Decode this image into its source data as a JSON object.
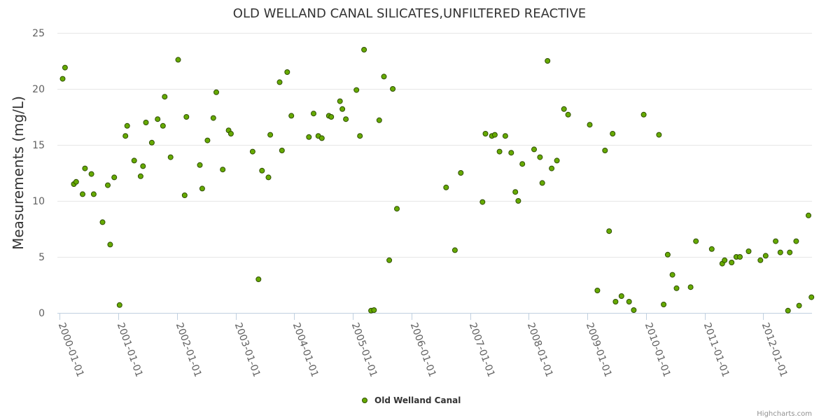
{
  "chart_data": {
    "type": "scatter",
    "title": "OLD WELLAND CANAL SILICATES,UNFILTERED REACTIVE",
    "xlabel": "",
    "ylabel": "Measurements (mg/L)",
    "ylim": [
      0,
      25
    ],
    "yticks": [
      0,
      5,
      10,
      15,
      20,
      25
    ],
    "xlim": [
      1999.96,
      2012.83
    ],
    "xticks": [
      "2000-01-01",
      "2001-01-01",
      "2002-01-01",
      "2003-01-01",
      "2004-01-01",
      "2005-01-01",
      "2006-01-01",
      "2007-01-01",
      "2008-01-01",
      "2009-01-01",
      "2010-01-01",
      "2011-01-01",
      "2012-01-01"
    ],
    "legend": "bottom-center",
    "series": [
      {
        "name": "Old Welland Canal",
        "color": "#66aa00",
        "border": "#2f4f00",
        "points": [
          [
            2000.05,
            20.9
          ],
          [
            2000.09,
            21.9
          ],
          [
            2000.24,
            11.5
          ],
          [
            2000.28,
            11.7
          ],
          [
            2000.39,
            10.6
          ],
          [
            2000.43,
            12.9
          ],
          [
            2000.54,
            12.4
          ],
          [
            2000.58,
            10.6
          ],
          [
            2000.73,
            8.1
          ],
          [
            2000.82,
            11.4
          ],
          [
            2000.86,
            6.1
          ],
          [
            2000.93,
            12.1
          ],
          [
            2001.02,
            0.7
          ],
          [
            2001.12,
            15.8
          ],
          [
            2001.15,
            16.7
          ],
          [
            2001.27,
            13.6
          ],
          [
            2001.38,
            12.2
          ],
          [
            2001.42,
            13.1
          ],
          [
            2001.47,
            17.0
          ],
          [
            2001.57,
            15.2
          ],
          [
            2001.67,
            17.3
          ],
          [
            2001.76,
            16.7
          ],
          [
            2001.79,
            19.3
          ],
          [
            2001.89,
            13.9
          ],
          [
            2002.02,
            22.6
          ],
          [
            2002.13,
            10.5
          ],
          [
            2002.16,
            17.5
          ],
          [
            2002.39,
            13.2
          ],
          [
            2002.43,
            11.1
          ],
          [
            2002.52,
            15.4
          ],
          [
            2002.62,
            17.4
          ],
          [
            2002.67,
            19.7
          ],
          [
            2002.78,
            12.8
          ],
          [
            2002.88,
            16.3
          ],
          [
            2002.92,
            16.0
          ],
          [
            2003.29,
            14.4
          ],
          [
            2003.39,
            3.0
          ],
          [
            2003.45,
            12.7
          ],
          [
            2003.56,
            12.1
          ],
          [
            2003.59,
            15.9
          ],
          [
            2003.75,
            20.6
          ],
          [
            2003.79,
            14.5
          ],
          [
            2003.88,
            21.5
          ],
          [
            2003.95,
            17.6
          ],
          [
            2004.25,
            15.7
          ],
          [
            2004.33,
            17.8
          ],
          [
            2004.41,
            15.8
          ],
          [
            2004.47,
            15.6
          ],
          [
            2004.59,
            17.6
          ],
          [
            2004.63,
            17.5
          ],
          [
            2004.78,
            18.9
          ],
          [
            2004.82,
            18.2
          ],
          [
            2004.88,
            17.3
          ],
          [
            2005.06,
            19.9
          ],
          [
            2005.12,
            15.8
          ],
          [
            2005.19,
            23.5
          ],
          [
            2005.31,
            0.2
          ],
          [
            2005.36,
            0.25
          ],
          [
            2005.45,
            17.2
          ],
          [
            2005.53,
            21.1
          ],
          [
            2005.62,
            4.7
          ],
          [
            2005.68,
            20.0
          ],
          [
            2005.75,
            9.3
          ],
          [
            2006.59,
            11.2
          ],
          [
            2006.74,
            5.6
          ],
          [
            2006.84,
            12.5
          ],
          [
            2007.21,
            9.9
          ],
          [
            2007.26,
            16.0
          ],
          [
            2007.37,
            15.8
          ],
          [
            2007.42,
            15.9
          ],
          [
            2007.5,
            14.4
          ],
          [
            2007.6,
            15.8
          ],
          [
            2007.7,
            14.3
          ],
          [
            2007.77,
            10.8
          ],
          [
            2007.82,
            10.0
          ],
          [
            2007.89,
            13.3
          ],
          [
            2008.09,
            14.6
          ],
          [
            2008.19,
            13.9
          ],
          [
            2008.23,
            11.6
          ],
          [
            2008.32,
            22.5
          ],
          [
            2008.39,
            12.9
          ],
          [
            2008.48,
            13.6
          ],
          [
            2008.6,
            18.2
          ],
          [
            2008.67,
            17.7
          ],
          [
            2009.04,
            16.8
          ],
          [
            2009.17,
            2.0
          ],
          [
            2009.3,
            14.5
          ],
          [
            2009.37,
            7.3
          ],
          [
            2009.43,
            16.0
          ],
          [
            2009.48,
            1.0
          ],
          [
            2009.58,
            1.5
          ],
          [
            2009.71,
            1.0
          ],
          [
            2009.79,
            0.25
          ],
          [
            2009.96,
            17.7
          ],
          [
            2010.22,
            15.9
          ],
          [
            2010.3,
            0.75
          ],
          [
            2010.37,
            5.2
          ],
          [
            2010.45,
            3.4
          ],
          [
            2010.52,
            2.2
          ],
          [
            2010.76,
            2.3
          ],
          [
            2010.85,
            6.4
          ],
          [
            2011.12,
            5.7
          ],
          [
            2011.3,
            4.4
          ],
          [
            2011.34,
            4.7
          ],
          [
            2011.46,
            4.5
          ],
          [
            2011.54,
            5.0
          ],
          [
            2011.6,
            5.0
          ],
          [
            2011.75,
            5.5
          ],
          [
            2011.95,
            4.7
          ],
          [
            2012.04,
            5.1
          ],
          [
            2012.21,
            6.4
          ],
          [
            2012.29,
            5.4
          ],
          [
            2012.42,
            0.2
          ],
          [
            2012.45,
            5.4
          ],
          [
            2012.56,
            6.4
          ],
          [
            2012.61,
            0.65
          ],
          [
            2012.77,
            8.7
          ],
          [
            2012.82,
            1.4
          ]
        ]
      }
    ]
  },
  "credits": "Highcharts.com"
}
